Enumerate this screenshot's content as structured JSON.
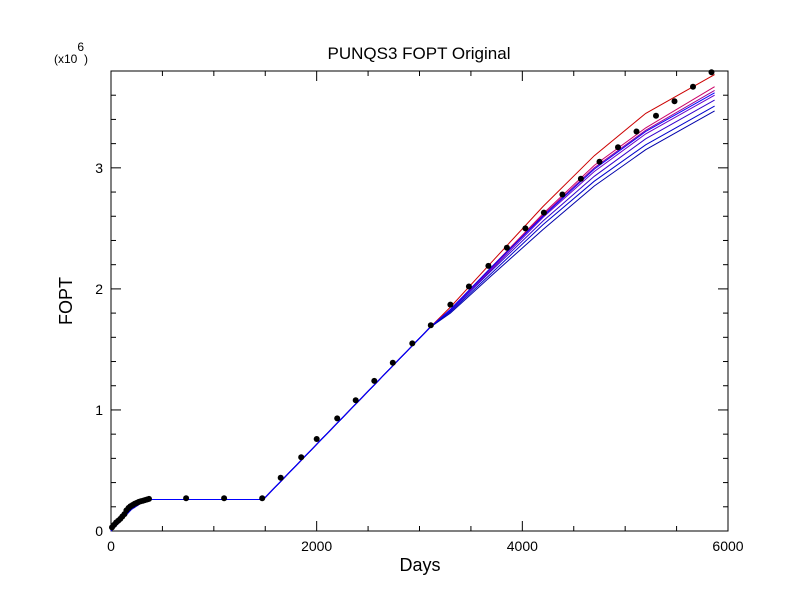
{
  "chart_data": {
    "type": "line",
    "title": "PUNQS3 FOPT Original",
    "xlabel": "Days",
    "ylabel": "FOPT",
    "y_scale_note_base": "(x10",
    "y_scale_note_exp": "6",
    "y_scale_note_close": ")",
    "xlim": [
      0,
      6000
    ],
    "ylim": [
      0,
      3.8
    ],
    "x_ticks": [
      0,
      2000,
      4000,
      6000
    ],
    "y_ticks": [
      0,
      1,
      2,
      3
    ],
    "grid": false,
    "observed": {
      "color": "#000000",
      "x": [
        10,
        30,
        50,
        70,
        90,
        110,
        130,
        150,
        170,
        190,
        210,
        230,
        250,
        270,
        290,
        310,
        330,
        350,
        370,
        730,
        1100,
        1470,
        1650,
        1850,
        2000,
        2200,
        2380,
        2560,
        2740,
        2930,
        3110,
        3300,
        3480,
        3670,
        3850,
        4030,
        4210,
        4390,
        4570,
        4750,
        4930,
        5110,
        5300,
        5480,
        5660,
        5840
      ],
      "y": [
        0.03,
        0.05,
        0.07,
        0.085,
        0.1,
        0.12,
        0.14,
        0.17,
        0.19,
        0.205,
        0.215,
        0.225,
        0.232,
        0.24,
        0.245,
        0.25,
        0.255,
        0.26,
        0.265,
        0.27,
        0.27,
        0.27,
        0.44,
        0.61,
        0.76,
        0.93,
        1.08,
        1.24,
        1.39,
        1.55,
        1.7,
        1.87,
        2.02,
        2.19,
        2.34,
        2.5,
        2.63,
        2.78,
        2.91,
        3.05,
        3.17,
        3.3,
        3.43,
        3.55,
        3.67,
        3.79
      ]
    },
    "series": [
      {
        "color": "#cc0000",
        "x": [
          0,
          100,
          200,
          300,
          370,
          1480,
          3100,
          3300,
          3700,
          4200,
          4700,
          5200,
          5870
        ],
        "y": [
          0,
          0.09,
          0.18,
          0.235,
          0.26,
          0.26,
          1.68,
          1.85,
          2.22,
          2.68,
          3.1,
          3.45,
          3.77
        ]
      },
      {
        "color": "#cc0066",
        "x": [
          0,
          100,
          200,
          300,
          370,
          1480,
          3100,
          3300,
          3700,
          4200,
          4700,
          5200,
          5870
        ],
        "y": [
          0,
          0.09,
          0.18,
          0.235,
          0.26,
          0.26,
          1.68,
          1.83,
          2.18,
          2.62,
          3.02,
          3.33,
          3.67
        ]
      },
      {
        "color": "#990099",
        "x": [
          0,
          100,
          200,
          300,
          370,
          1480,
          3100,
          3300,
          3700,
          4200,
          4700,
          5200,
          5870
        ],
        "y": [
          0,
          0.09,
          0.18,
          0.235,
          0.26,
          0.26,
          1.68,
          1.83,
          2.17,
          2.61,
          3.0,
          3.31,
          3.64
        ]
      },
      {
        "color": "#6600cc",
        "x": [
          0,
          100,
          200,
          300,
          370,
          1480,
          3100,
          3300,
          3700,
          4200,
          4700,
          5200,
          5870
        ],
        "y": [
          0,
          0.09,
          0.18,
          0.235,
          0.26,
          0.26,
          1.68,
          1.82,
          2.16,
          2.59,
          2.97,
          3.28,
          3.6
        ]
      },
      {
        "color": "#3300cc",
        "x": [
          0,
          100,
          200,
          300,
          370,
          1480,
          3100,
          3300,
          3700,
          4200,
          4700,
          5200,
          5870
        ],
        "y": [
          0,
          0.09,
          0.18,
          0.235,
          0.26,
          0.26,
          1.68,
          1.82,
          2.15,
          2.56,
          2.93,
          3.24,
          3.56
        ]
      },
      {
        "color": "#0000cc",
        "x": [
          0,
          100,
          200,
          300,
          370,
          1480,
          3100,
          3300,
          3700,
          4200,
          4700,
          5200,
          5870
        ],
        "y": [
          0,
          0.09,
          0.18,
          0.235,
          0.26,
          0.26,
          1.68,
          1.81,
          2.13,
          2.53,
          2.89,
          3.19,
          3.51
        ]
      },
      {
        "color": "#0000aa",
        "x": [
          0,
          100,
          200,
          300,
          370,
          1480,
          3100,
          3300,
          3700,
          4200,
          4700,
          5200,
          5870
        ],
        "y": [
          0,
          0.09,
          0.18,
          0.235,
          0.26,
          0.26,
          1.68,
          1.8,
          2.11,
          2.49,
          2.85,
          3.15,
          3.47
        ]
      },
      {
        "color": "#0000ff",
        "x": [
          0,
          100,
          200,
          300,
          370,
          1480,
          3100,
          3300,
          3700,
          4200,
          4700,
          5200,
          5870
        ],
        "y": [
          0,
          0.09,
          0.18,
          0.235,
          0.26,
          0.26,
          1.68,
          1.83,
          2.18,
          2.6,
          2.99,
          3.3,
          3.62
        ]
      }
    ]
  }
}
